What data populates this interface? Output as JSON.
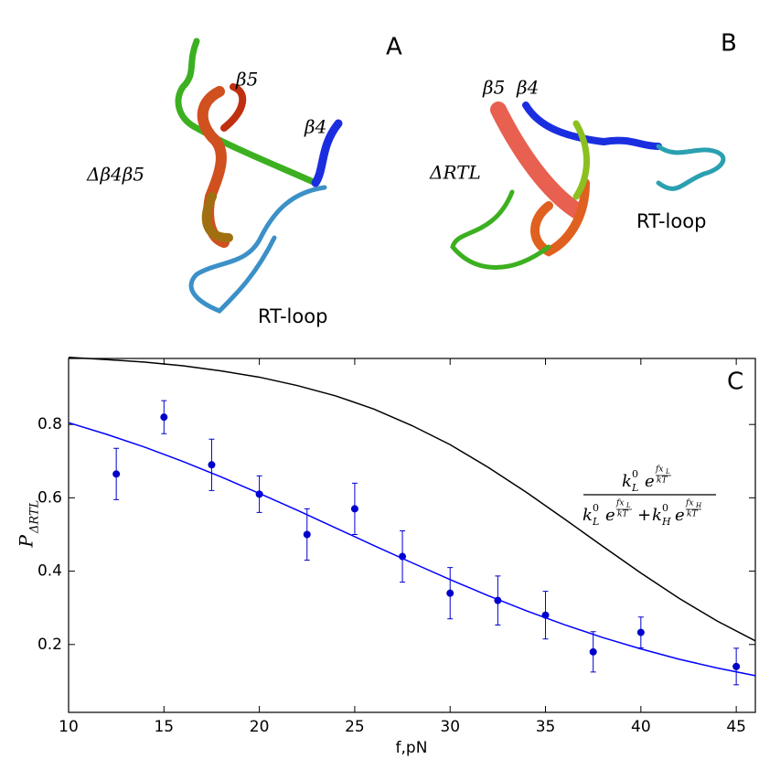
{
  "figure": {
    "panel_a": {
      "label": "A",
      "beta5": "β5",
      "beta4": "β4",
      "name": "Δβ4β5",
      "loop": "RT-loop"
    },
    "panel_b": {
      "label": "B",
      "beta5": "β5",
      "beta4": "β4",
      "name": "ΔRTL",
      "loop": "RT-loop"
    }
  },
  "chart_data": {
    "type": "scatter",
    "panel_label": "C",
    "x_label": "f,pN",
    "y_label": {
      "text": "P",
      "sub": "ΔRTL"
    },
    "xlim": [
      10,
      46
    ],
    "ylim": [
      0.015,
      0.98
    ],
    "xticks": [
      10,
      15,
      20,
      25,
      30,
      35,
      40,
      45
    ],
    "yticks": [
      0.2,
      0.4,
      0.6,
      0.8
    ],
    "series": [
      {
        "kind": "points",
        "color": "#0000cc",
        "x": [
          12.5,
          15,
          17.5,
          20,
          22.5,
          25,
          27.5,
          30,
          32.5,
          35,
          37.5,
          40,
          45
        ],
        "values": [
          0.665,
          0.82,
          0.69,
          0.61,
          0.5,
          0.57,
          0.44,
          0.34,
          0.32,
          0.28,
          0.18,
          0.233,
          0.14
        ],
        "errors": [
          0.07,
          0.045,
          0.07,
          0.05,
          0.07,
          0.07,
          0.07,
          0.07,
          0.067,
          0.065,
          0.055,
          0.042,
          0.05
        ]
      },
      {
        "kind": "line",
        "color": "#0000ff",
        "x": [
          10,
          12,
          14,
          16,
          18,
          20,
          22,
          24,
          26,
          28,
          30,
          32,
          34,
          36,
          38,
          40,
          42,
          44,
          46
        ],
        "values": [
          0.805,
          0.773,
          0.738,
          0.699,
          0.657,
          0.612,
          0.566,
          0.518,
          0.47,
          0.423,
          0.377,
          0.333,
          0.292,
          0.254,
          0.219,
          0.188,
          0.16,
          0.136,
          0.115
        ]
      },
      {
        "kind": "line",
        "color": "#000000",
        "x": [
          10,
          12,
          14,
          16,
          18,
          20,
          22,
          24,
          26,
          28,
          30,
          32,
          34,
          36,
          38,
          40,
          42,
          44,
          46
        ],
        "values": [
          0.983,
          0.977,
          0.97,
          0.96,
          0.946,
          0.929,
          0.906,
          0.878,
          0.842,
          0.797,
          0.745,
          0.683,
          0.615,
          0.542,
          0.468,
          0.395,
          0.326,
          0.264,
          0.21
        ]
      }
    ],
    "formula": {
      "numerator": [
        {
          "symbol": "k",
          "sup": "0",
          "sub": "L",
          "base": "e",
          "exponent": "fx",
          "exponent_sub": "L",
          "exponent_den": "kT"
        }
      ],
      "denominator": [
        {
          "symbol": "k",
          "sup": "0",
          "sub": "L",
          "base": "e",
          "exponent": "fx",
          "exponent_sub": "L",
          "exponent_den": "kT"
        },
        {
          "symbol": "k",
          "sup": "0",
          "sub": "H",
          "base": "e",
          "exponent": "fx",
          "exponent_sub": "H",
          "exponent_den": "kT"
        }
      ],
      "operator": "+"
    }
  }
}
